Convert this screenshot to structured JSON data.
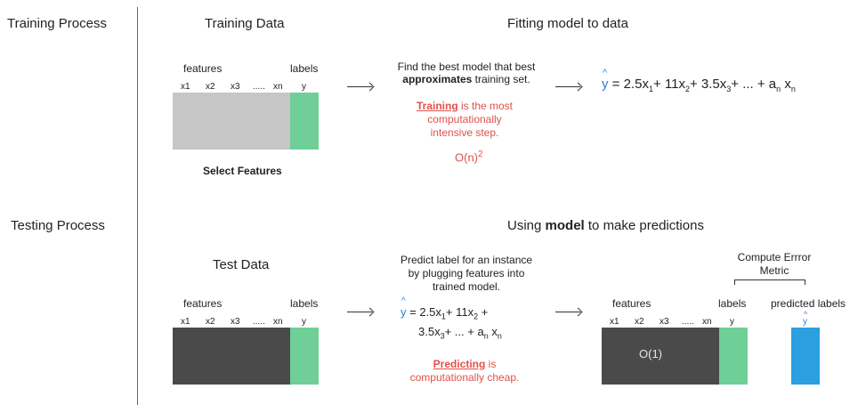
{
  "sections": {
    "training": "Training Process",
    "testing": "Testing Process"
  },
  "training": {
    "data_title": "Training Data",
    "features_label": "features",
    "labels_label": "labels",
    "columns": [
      "x1",
      "x2",
      "x3",
      ".....",
      "xn",
      "y"
    ],
    "select_features": "Select Features",
    "fit_title": "Fitting model to data",
    "find_line1": "Find the best model that best",
    "find_bold": "approximates",
    "find_rest": " training set.",
    "red_bold": "Training",
    "red_rest1": " is the most",
    "red_line2": "computationally",
    "red_line3": "intensive step.",
    "complexity_base": "O(n)",
    "complexity_exp": "2",
    "equation": {
      "hat_y": "y",
      "prefix": " = 2.5x",
      "s1": "1",
      "t2": "+ 11x",
      "s2": "2",
      "t3": "+ 3.5x",
      "s3": "3",
      "t4": "+ ... + a",
      "sn": "n",
      "t5": " x",
      "sn2": "n"
    }
  },
  "testing": {
    "predict_title_pre": "Using ",
    "predict_title_bold": "model",
    "predict_title_post": " to make predictions",
    "data_title": "Test Data",
    "features_label": "features",
    "labels_label": "labels",
    "columns": [
      "x1",
      "x2",
      "x3",
      ".....",
      "xn",
      "y"
    ],
    "predict_line1": "Predict label for an instance",
    "predict_line2": "by plugging features into",
    "predict_line3": "trained model.",
    "eq_line1": {
      "hat_y": "y",
      "t1": " = 2.5x",
      "s1": "1",
      "t2": "+ 11x",
      "s2": "2",
      "t3": " +"
    },
    "eq_line2": {
      "t1": "3.5x",
      "s1": "3",
      "t2": "+ ... + a",
      "s2": "n",
      "t3": " x",
      "s3": "n"
    },
    "red_bold": "Predicting",
    "red_rest": " is",
    "red_line2": "computationally cheap.",
    "metric_line1": "Compute Errror",
    "metric_line2": "Metric",
    "right_features": "features",
    "right_labels": "labels",
    "right_predicted": "predicted labels",
    "right_columns": [
      "x1",
      "x2",
      "x3",
      ".....",
      "xn",
      "y"
    ],
    "right_hat_y": "y",
    "complexity": "O(1)"
  },
  "colors": {
    "feature_block_train": "#c6c6c6",
    "feature_block_test": "#4a4a4a",
    "label_green": "#6fcf97",
    "predicted_blue": "#2b9fe0",
    "accent_red": "#e0514b",
    "hat_blue": "#2b7fd6"
  }
}
